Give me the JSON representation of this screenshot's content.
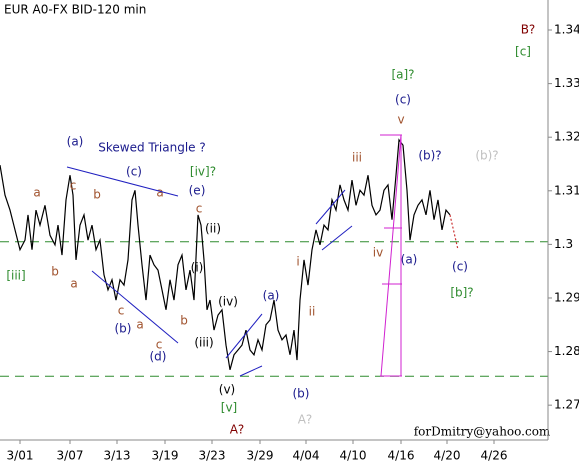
{
  "chart_data": {
    "type": "line",
    "title": "EUR A0-FX BID-120 min",
    "xlim": [
      0,
      548
    ],
    "ylim": [
      1.2635,
      1.3456
    ],
    "xticks": [
      {
        "value": 20,
        "label": "3/01"
      },
      {
        "value": 70,
        "label": "3/07"
      },
      {
        "value": 117,
        "label": "3/13"
      },
      {
        "value": 165,
        "label": "3/19"
      },
      {
        "value": 212,
        "label": "3/23"
      },
      {
        "value": 260,
        "label": "3/29"
      },
      {
        "value": 306,
        "label": "4/04"
      },
      {
        "value": 353,
        "label": "4/10"
      },
      {
        "value": 401,
        "label": "4/16"
      },
      {
        "value": 447,
        "label": "4/20"
      },
      {
        "value": 494,
        "label": "4/26"
      }
    ],
    "yticks": [
      1.27,
      1.28,
      1.29,
      1.3,
      1.31,
      1.32,
      1.33,
      1.34
    ],
    "levels": {
      "color": "#2e8b2e",
      "values": [
        1.3005,
        1.2754
      ]
    },
    "series": [
      {
        "color": "#000000",
        "x": [
          0,
          5,
          10,
          15,
          20,
          25,
          28,
          32,
          36,
          40,
          45,
          50,
          55,
          58,
          62,
          66,
          70,
          73,
          76,
          80,
          84,
          88,
          92,
          96,
          100,
          104,
          108,
          112,
          116,
          120,
          124,
          128,
          132,
          135,
          138,
          142,
          146,
          150,
          154,
          158,
          162,
          166,
          170,
          174,
          178,
          182,
          186,
          190,
          194,
          198,
          201,
          204,
          207,
          210,
          214,
          218,
          222,
          226,
          230,
          234,
          238,
          242,
          246,
          250,
          254,
          258,
          262,
          266,
          270,
          274,
          278,
          282,
          286,
          290,
          294,
          297,
          300,
          304,
          308,
          312,
          316,
          320,
          324,
          328,
          332,
          336,
          340,
          344,
          348,
          352,
          356,
          360,
          364,
          368,
          372,
          376,
          380,
          384,
          388,
          392,
          396,
          399,
          403,
          407,
          410,
          414,
          418,
          422,
          426,
          430,
          434,
          438,
          442,
          446,
          450
        ],
        "values": [
          1.3148,
          1.3092,
          1.3064,
          1.3027,
          1.299,
          1.3008,
          1.3055,
          1.299,
          1.3064,
          1.3036,
          1.3073,
          1.3017,
          1.2999,
          1.3036,
          1.298,
          1.3083,
          1.3129,
          1.3092,
          1.2971,
          1.3036,
          1.3055,
          1.3008,
          1.3036,
          1.299,
          1.3008,
          1.2943,
          1.2915,
          1.2934,
          1.2896,
          1.2934,
          1.2924,
          1.2971,
          1.3083,
          1.3101,
          1.3036,
          1.2962,
          1.2896,
          1.298,
          1.2962,
          1.2952,
          1.2915,
          1.2878,
          1.2934,
          1.2896,
          1.2962,
          1.298,
          1.2915,
          1.2952,
          1.2896,
          1.3055,
          1.3036,
          1.2971,
          1.2878,
          1.2896,
          1.284,
          1.2868,
          1.2878,
          1.2812,
          1.2766,
          1.2794,
          1.2803,
          1.2812,
          1.284,
          1.2803,
          1.2794,
          1.2822,
          1.2803,
          1.285,
          1.2859,
          1.2896,
          1.284,
          1.2822,
          1.2831,
          1.2794,
          1.284,
          1.2784,
          1.2896,
          1.2971,
          1.2924,
          1.299,
          1.3027,
          1.2999,
          1.3036,
          1.3027,
          1.3083,
          1.3064,
          1.3111,
          1.3083,
          1.3064,
          1.312,
          1.3073,
          1.3101,
          1.3092,
          1.3129,
          1.3073,
          1.3055,
          1.3064,
          1.3101,
          1.3111,
          1.3046,
          1.3129,
          1.3195,
          1.3185,
          1.3101,
          1.3008,
          1.3055,
          1.3073,
          1.3083,
          1.3055,
          1.3101,
          1.3046,
          1.3083,
          1.3027,
          1.3064,
          1.3055
        ]
      },
      {
        "color": "#cc3333",
        "dashed": true,
        "x": [
          450,
          458
        ],
        "values": [
          1.3055,
          1.299
        ]
      }
    ],
    "annotations": [
      {
        "text": "B?",
        "color": "#800000"
      },
      {
        "text": "[c]",
        "color": "#2e8b2e"
      },
      {
        "text": "[a]?",
        "color": "#2e8b2e"
      },
      {
        "text": "(c)",
        "color": "#1a1a8c"
      },
      {
        "text": "v",
        "color": "#a0522d"
      },
      {
        "text": "(b)?",
        "color": "#1a1a8c"
      },
      {
        "text": "(b)?",
        "color": "#c0c0c0"
      },
      {
        "text": "iii",
        "color": "#a0522d"
      },
      {
        "text": "(a)",
        "color": "#1a1a8c"
      },
      {
        "text": "Skewed Triangle ?",
        "color": "#1a1a8c"
      },
      {
        "text": "(c)",
        "color": "#1a1a8c"
      },
      {
        "text": "[iv]?",
        "color": "#2e8b2e"
      },
      {
        "text": "(e)",
        "color": "#1a1a8c"
      },
      {
        "text": "c",
        "color": "#a0522d"
      },
      {
        "text": "a",
        "color": "#a0522d"
      },
      {
        "text": "c",
        "color": "#a0522d"
      },
      {
        "text": "b",
        "color": "#a0522d"
      },
      {
        "text": "a",
        "color": "#a0522d"
      },
      {
        "text": "(ii)",
        "color": "#000000"
      },
      {
        "text": "i",
        "color": "#a0522d"
      },
      {
        "text": "iv",
        "color": "#a0522d"
      },
      {
        "text": "(a)",
        "color": "#1a1a8c"
      },
      {
        "text": "(c)",
        "color": "#1a1a8c"
      },
      {
        "text": "[b]?",
        "color": "#2e8b2e"
      },
      {
        "text": "[iii]",
        "color": "#2e8b2e"
      },
      {
        "text": "b",
        "color": "#a0522d"
      },
      {
        "text": "a",
        "color": "#a0522d"
      },
      {
        "text": "(i)",
        "color": "#000000"
      },
      {
        "text": "c",
        "color": "#a0522d"
      },
      {
        "text": "(b)",
        "color": "#1a1a8c"
      },
      {
        "text": "a",
        "color": "#a0522d"
      },
      {
        "text": "c",
        "color": "#a0522d"
      },
      {
        "text": "b",
        "color": "#a0522d"
      },
      {
        "text": "(d)",
        "color": "#1a1a8c"
      },
      {
        "text": "(iv)",
        "color": "#000000"
      },
      {
        "text": "(a)",
        "color": "#1a1a8c"
      },
      {
        "text": "ii",
        "color": "#a0522d"
      },
      {
        "text": "(iii)",
        "color": "#000000"
      },
      {
        "text": "(v)",
        "color": "#000000"
      },
      {
        "text": "[v]",
        "color": "#2e8b2e"
      },
      {
        "text": "(b)",
        "color": "#1a1a8c"
      },
      {
        "text": "A?",
        "color": "#800000"
      },
      {
        "text": "A?",
        "color": "#c0c0c0"
      },
      {
        "text": "forDmitry@yahoo.com",
        "color": "#000000"
      }
    ]
  }
}
